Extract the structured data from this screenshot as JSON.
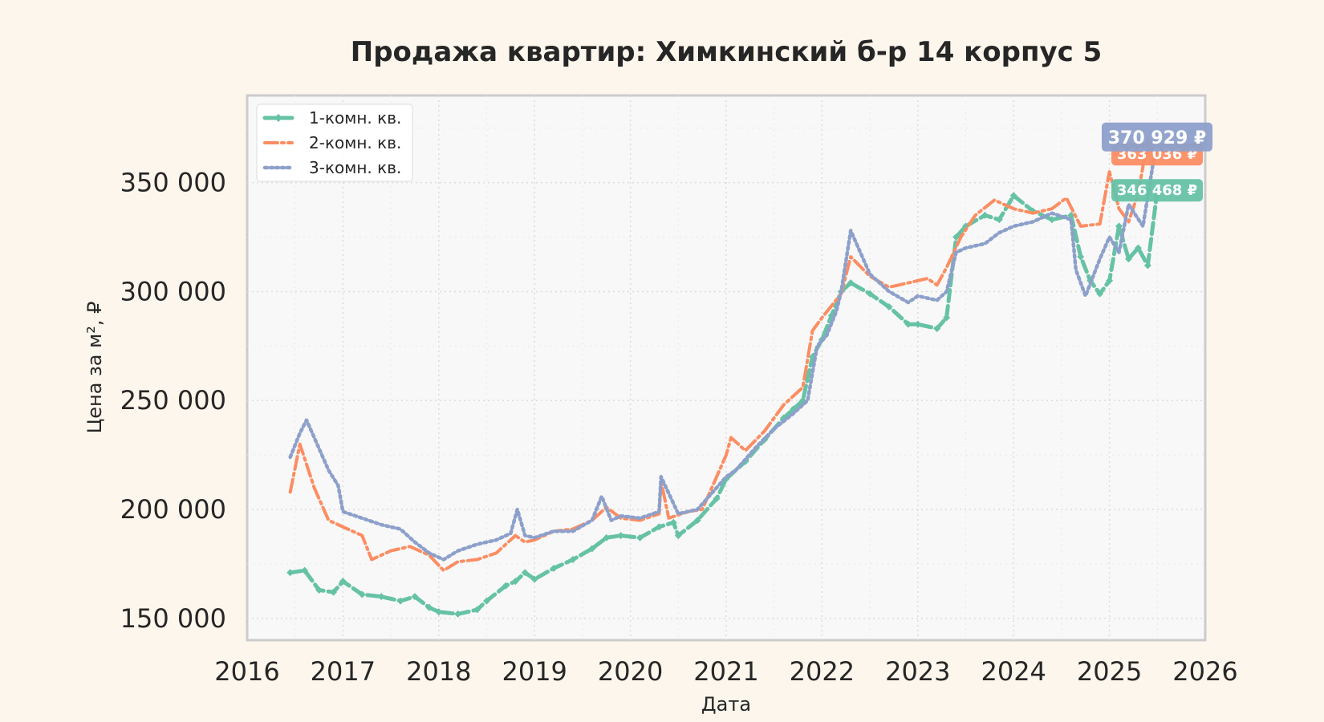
{
  "chart_data": {
    "type": "line",
    "title": "Продажа квартир: Химкинский б-р 14 корпус 5",
    "xlabel": "Дата",
    "ylabel": "Цена за м², ₽",
    "xlim": [
      2016,
      2026
    ],
    "ylim": [
      140000,
      390000
    ],
    "x_ticks": [
      2016,
      2017,
      2018,
      2019,
      2020,
      2021,
      2022,
      2023,
      2024,
      2025,
      2026
    ],
    "x_tick_labels": [
      "2016",
      "2017",
      "2018",
      "2019",
      "2020",
      "2021",
      "2022",
      "2023",
      "2024",
      "2025",
      "2026"
    ],
    "y_ticks": [
      150000,
      200000,
      250000,
      300000,
      350000
    ],
    "y_tick_labels": [
      "150 000",
      "200 000",
      "250 000",
      "300 000",
      "350 000"
    ],
    "grid": true,
    "legend_position": "top-left",
    "series": [
      {
        "name": "1-комн. кв.",
        "color": "#66c2a5",
        "style": "dashed-diamond",
        "last_label": "346 468 ₽",
        "x": [
          2016.45,
          2016.6,
          2016.75,
          2016.9,
          2017.0,
          2017.2,
          2017.4,
          2017.6,
          2017.75,
          2017.9,
          2018.0,
          2018.2,
          2018.4,
          2018.5,
          2018.7,
          2018.8,
          2018.9,
          2019.0,
          2019.2,
          2019.4,
          2019.6,
          2019.75,
          2019.9,
          2020.1,
          2020.3,
          2020.45,
          2020.5,
          2020.7,
          2020.9,
          2021.0,
          2021.2,
          2021.4,
          2021.6,
          2021.7,
          2021.8,
          2021.9,
          2022.0,
          2022.1,
          2022.2,
          2022.3,
          2022.5,
          2022.7,
          2022.9,
          2023.0,
          2023.2,
          2023.3,
          2023.4,
          2023.5,
          2023.7,
          2023.85,
          2024.0,
          2024.2,
          2024.4,
          2024.6,
          2024.7,
          2024.8,
          2024.9,
          2025.0,
          2025.1,
          2025.2,
          2025.3,
          2025.4,
          2025.5
        ],
        "y": [
          171000,
          172000,
          163000,
          162000,
          167000,
          161000,
          160000,
          158000,
          160000,
          155000,
          153000,
          152000,
          154000,
          158000,
          165000,
          167000,
          171000,
          168000,
          173000,
          177000,
          182000,
          187000,
          188000,
          187000,
          192000,
          194000,
          188000,
          195000,
          205000,
          214000,
          222000,
          232000,
          242000,
          246000,
          250000,
          270000,
          278000,
          289000,
          300000,
          304000,
          299000,
          293000,
          285000,
          285000,
          283000,
          288000,
          325000,
          330000,
          335000,
          333000,
          344000,
          337000,
          333000,
          335000,
          316000,
          305000,
          299000,
          305000,
          330000,
          315000,
          320000,
          312000,
          346468
        ]
      },
      {
        "name": "2-комн. кв.",
        "color": "#fc8d62",
        "style": "dash-dot",
        "last_label": "363 036 ₽",
        "x": [
          2016.45,
          2016.55,
          2016.7,
          2016.85,
          2017.0,
          2017.2,
          2017.3,
          2017.5,
          2017.7,
          2017.9,
          2018.05,
          2018.2,
          2018.4,
          2018.6,
          2018.8,
          2018.9,
          2019.0,
          2019.2,
          2019.4,
          2019.6,
          2019.75,
          2019.9,
          2020.1,
          2020.3,
          2020.32,
          2020.4,
          2020.6,
          2020.75,
          2020.9,
          2021.0,
          2021.05,
          2021.2,
          2021.4,
          2021.6,
          2021.8,
          2021.9,
          2022.0,
          2022.2,
          2022.3,
          2022.5,
          2022.7,
          2022.9,
          2023.1,
          2023.2,
          2023.3,
          2023.45,
          2023.6,
          2023.8,
          2024.0,
          2024.2,
          2024.4,
          2024.55,
          2024.7,
          2024.9,
          2025.0,
          2025.1,
          2025.2,
          2025.3,
          2025.4,
          2025.5
        ],
        "y": [
          208000,
          230000,
          210000,
          195000,
          192000,
          188000,
          177000,
          181000,
          183000,
          179000,
          172000,
          176000,
          177000,
          180000,
          188000,
          185000,
          186000,
          190000,
          191000,
          195000,
          201000,
          196000,
          195000,
          198000,
          213000,
          196000,
          199000,
          200000,
          215000,
          225000,
          233000,
          227000,
          236000,
          248000,
          256000,
          282000,
          288000,
          299000,
          316000,
          307000,
          302000,
          304000,
          306000,
          303000,
          311000,
          325000,
          335000,
          342000,
          338000,
          336000,
          338000,
          343000,
          330000,
          331000,
          355000,
          338000,
          332000,
          345000,
          370000,
          363036
        ]
      },
      {
        "name": "3-комн. кв.",
        "color": "#8da0cb",
        "style": "dotted",
        "last_label": "370 929 ₽",
        "x": [
          2016.45,
          2016.55,
          2016.62,
          2016.75,
          2016.85,
          2016.95,
          2017.0,
          2017.2,
          2017.4,
          2017.6,
          2017.75,
          2017.9,
          2018.05,
          2018.2,
          2018.4,
          2018.6,
          2018.75,
          2018.82,
          2018.9,
          2019.0,
          2019.2,
          2019.4,
          2019.6,
          2019.7,
          2019.8,
          2019.9,
          2020.1,
          2020.3,
          2020.32,
          2020.5,
          2020.7,
          2020.9,
          2021.0,
          2021.1,
          2021.3,
          2021.5,
          2021.7,
          2021.85,
          2021.95,
          2022.05,
          2022.15,
          2022.2,
          2022.3,
          2022.5,
          2022.7,
          2022.9,
          2023.0,
          2023.2,
          2023.3,
          2023.4,
          2023.5,
          2023.7,
          2023.85,
          2024.0,
          2024.2,
          2024.4,
          2024.6,
          2024.65,
          2024.75,
          2024.9,
          2025.0,
          2025.1,
          2025.2,
          2025.35,
          2025.5
        ],
        "y": [
          224000,
          235000,
          241000,
          228000,
          218000,
          211000,
          199000,
          196000,
          193000,
          191000,
          185000,
          180000,
          177000,
          181000,
          184000,
          186000,
          189000,
          200000,
          188000,
          187000,
          190000,
          190000,
          195000,
          206000,
          195000,
          197000,
          196000,
          199000,
          215000,
          198000,
          200000,
          210000,
          215000,
          218000,
          228000,
          237000,
          244000,
          250000,
          275000,
          280000,
          291000,
          300000,
          328000,
          308000,
          300000,
          295000,
          298000,
          296000,
          300000,
          318000,
          320000,
          322000,
          327000,
          330000,
          332000,
          336000,
          333000,
          310000,
          298000,
          315000,
          325000,
          318000,
          340000,
          330000,
          370929
        ]
      }
    ]
  }
}
